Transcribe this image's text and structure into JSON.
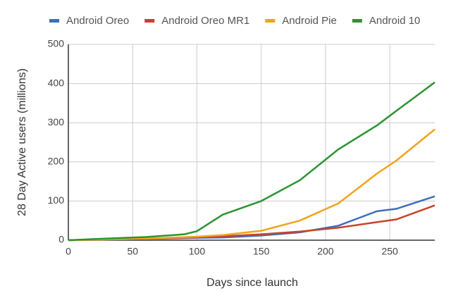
{
  "chart_data": {
    "type": "line",
    "x_label": "Days since launch",
    "y_label": "28 Day Active users (millions)",
    "xlim": [
      0,
      285
    ],
    "ylim": [
      0,
      500
    ],
    "xticks": [
      0,
      50,
      100,
      150,
      200,
      250
    ],
    "yticks": [
      0,
      100,
      200,
      300,
      400,
      500
    ],
    "grid": true,
    "legend": "top",
    "series": [
      {
        "name": "Android Oreo",
        "color": "#3e6ebe",
        "x": [
          0,
          100,
          120,
          150,
          180,
          210,
          240,
          255,
          285
        ],
        "values": [
          0,
          6,
          7,
          12,
          20,
          37,
          74,
          80,
          112
        ]
      },
      {
        "name": "Android Oreo MR1",
        "color": "#c8432a",
        "x": [
          0,
          100,
          120,
          150,
          180,
          210,
          240,
          255,
          285
        ],
        "values": [
          0,
          7,
          10,
          15,
          22,
          32,
          46,
          53,
          89
        ]
      },
      {
        "name": "Android Pie",
        "color": "#f2a31b",
        "x": [
          0,
          60,
          100,
          120,
          150,
          180,
          210,
          240,
          255,
          285
        ],
        "values": [
          0,
          4,
          9,
          13,
          24,
          50,
          94,
          170,
          203,
          283
        ]
      },
      {
        "name": "Android 10",
        "color": "#2b9433",
        "x": [
          0,
          20,
          60,
          90,
          100,
          120,
          150,
          180,
          210,
          240,
          255,
          285
        ],
        "values": [
          0,
          3,
          8,
          15,
          23,
          65,
          100,
          153,
          232,
          293,
          330,
          403
        ]
      }
    ]
  }
}
